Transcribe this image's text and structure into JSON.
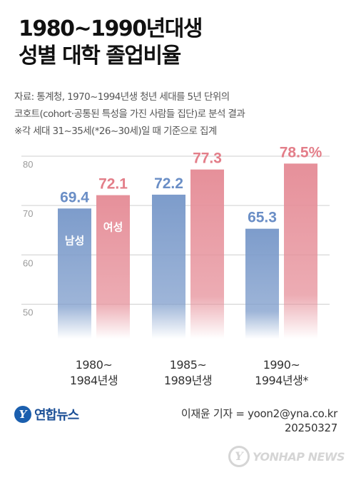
{
  "title": {
    "line1": "1980~1990년대생",
    "line2": "성별 대학 졸업비율"
  },
  "source": {
    "line1": "자료: 통계청, 1970~1994년생 청년 세대를 5년 단위의",
    "line2": "코호트(cohort·공통된 특성을 가진 사람들 집단)로 분석 결과",
    "line3": "※각 세대 31~35세(*26~30세)일 때 기준으로 집계"
  },
  "colors": {
    "male": "#7d9ccb",
    "female": "#e6909a",
    "male_label": "#6a8ec6",
    "female_label": "#e37e89",
    "grid": "#cfcfcf",
    "axis_text": "#9a9a9a"
  },
  "chart_data": {
    "type": "bar",
    "categories": [
      [
        "1980~",
        "1984년생"
      ],
      [
        "1985~",
        "1989년생"
      ],
      [
        "1990~",
        "1994년생*"
      ]
    ],
    "series": [
      {
        "name": "남성",
        "values": [
          69.4,
          72.2,
          65.3
        ],
        "labels": [
          "69.4",
          "72.2",
          "65.3"
        ]
      },
      {
        "name": "여성",
        "values": [
          72.1,
          77.3,
          78.5
        ],
        "labels": [
          "72.1",
          "77.3",
          "78.5%"
        ]
      }
    ],
    "yticks": [
      "80",
      "70",
      "60",
      "50"
    ],
    "ylim": [
      43,
      82
    ],
    "grid": true,
    "legend": "inside-first-bars"
  },
  "footer": {
    "logo_text": "연합뉴스",
    "logo_letter": "Y",
    "credit_line1": "이재윤 기자 = yoon2@yna.co.kr",
    "credit_line2": "20250327",
    "watermark": "YONHAP NEWS"
  }
}
